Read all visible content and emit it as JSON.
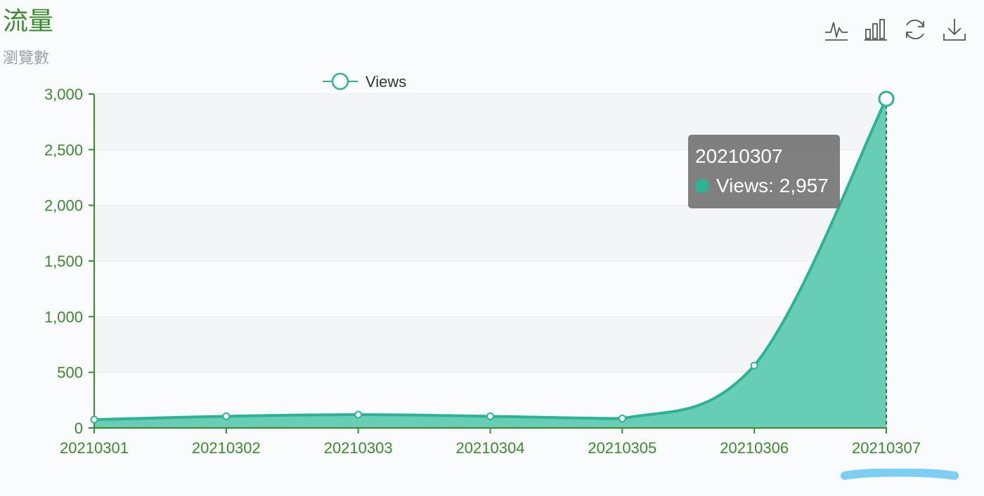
{
  "title": "流量",
  "subtitle": "瀏覽數",
  "toolbox": {
    "line_icon": "line-chart-icon",
    "bar_icon": "bar-chart-icon",
    "restore_icon": "refresh-icon",
    "save_icon": "download-icon"
  },
  "tooltip": {
    "title": "20210307",
    "label": "Views: 2,957"
  },
  "colors": {
    "line": "#2db393",
    "area": "#5fcab0",
    "axis": "#3b8a2e",
    "title": "#3b8a2e"
  },
  "chart_data": {
    "type": "area",
    "categories": [
      "20210301",
      "20210302",
      "20210303",
      "20210304",
      "20210305",
      "20210306",
      "20210307"
    ],
    "series": [
      {
        "name": "Views",
        "values": [
          75,
          105,
          120,
          105,
          85,
          560,
          2957
        ]
      }
    ],
    "ylim": [
      0,
      3000
    ],
    "yticks": [
      0,
      500,
      1000,
      1500,
      2000,
      2500,
      3000
    ],
    "ytick_labels": [
      "0",
      "500",
      "1,000",
      "1,500",
      "2,000",
      "2,500",
      "3,000"
    ],
    "legend": "top-center",
    "grid": true,
    "highlighted_category": "20210307"
  }
}
